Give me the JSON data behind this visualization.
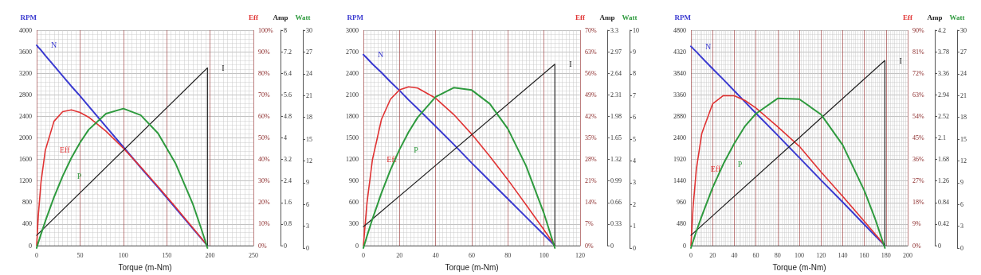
{
  "chart_data": [
    {
      "type": "line",
      "xlabel": "Torque (m-Nm)",
      "ylabel": "RPM",
      "y2label": "Eff",
      "y3label": "Amp",
      "grid": true,
      "x": [
        0,
        2,
        5,
        10,
        20,
        30,
        40,
        50,
        60,
        80,
        100,
        120,
        140,
        160,
        180,
        190,
        197
      ],
      "xlim": [
        0,
        250
      ],
      "xticks": [
        0,
        50,
        100,
        150,
        200,
        250
      ],
      "ylim": [
        0,
        4000
      ],
      "yticks": [
        0,
        400,
        800,
        1200,
        1600,
        2000,
        2400,
        2800,
        3200,
        3600,
        4000
      ],
      "y2lim": [
        0,
        100
      ],
      "y2ticks": [
        {
          "value": 0,
          "label": "0%"
        },
        {
          "value": 10,
          "label": "10%"
        },
        {
          "value": 20,
          "label": "20%"
        },
        {
          "value": 30,
          "label": "30%"
        },
        {
          "value": 40,
          "label": "40%"
        },
        {
          "value": 50,
          "label": "50%"
        },
        {
          "value": 60,
          "label": "60%"
        },
        {
          "value": 70,
          "label": "70%"
        },
        {
          "value": 80,
          "label": "80%"
        },
        {
          "value": 90,
          "label": "90%"
        },
        {
          "value": 100,
          "label": "100%"
        }
      ],
      "y3lim": [
        0,
        8
      ],
      "y3ticks": [
        0,
        0.8,
        1.6,
        2.4,
        3.2,
        4,
        4.8,
        5.6,
        6.4,
        7.2,
        8
      ],
      "series": [
        {
          "name": "N",
          "color": "#3a3ad0",
          "values": [
            3720,
            3680,
            3630,
            3530,
            3340,
            3150,
            2960,
            2780,
            2590,
            2210,
            1830,
            1450,
            1080,
            700,
            320,
            130,
            0
          ]
        },
        {
          "name": "Eff",
          "color": "#e03333",
          "axis": "y2",
          "values": [
            0,
            14.5,
            29.4,
            44.3,
            57.7,
            62.2,
            63.0,
            61.8,
            59.6,
            53.1,
            45.2,
            36.5,
            27.4,
            18.0,
            8.3,
            3.4,
            0
          ]
        },
        {
          "name": "I",
          "color": "#222222",
          "axis": "y3",
          "x": [
            0,
            197,
            197
          ],
          "values": [
            0.38,
            6.6,
            0
          ]
        }
      ]
    },
    {
      "type": "line",
      "ylabel": "Watt",
      "tick_labels": "y",
      "x": [
        0,
        2,
        5,
        10,
        20,
        30,
        40,
        50,
        60,
        80,
        100,
        120,
        140,
        160,
        180,
        190,
        197
      ],
      "xlim": [
        0,
        250
      ],
      "ylim": [
        0,
        30
      ],
      "yticks": [
        0,
        3,
        6,
        9,
        12,
        15,
        18,
        21,
        24,
        27,
        30
      ],
      "series": [
        {
          "name": "P",
          "color": "#2e9a3e",
          "values": [
            0,
            0.8,
            1.9,
            3.7,
            7.0,
            9.9,
            12.4,
            14.5,
            16.3,
            18.5,
            19.2,
            18.3,
            15.8,
            11.7,
            6.1,
            2.6,
            0
          ]
        }
      ]
    },
    {
      "type": "line",
      "xlabel": "Torque (m-Nm)",
      "ylabel": "RPM",
      "y2label": "Eff",
      "y3label": "Amp",
      "grid": true,
      "x": [
        0,
        2,
        5,
        10,
        15,
        20,
        25,
        30,
        40,
        50,
        60,
        70,
        80,
        90,
        100,
        106
      ],
      "xlim": [
        0,
        120
      ],
      "xticks": [
        0,
        20,
        40,
        60,
        80,
        100,
        120
      ],
      "ylim": [
        0,
        3000
      ],
      "yticks": [
        0,
        300,
        600,
        900,
        1200,
        1500,
        1800,
        2100,
        2400,
        2700,
        3000
      ],
      "y2lim": [
        0,
        70
      ],
      "y2ticks": [
        {
          "value": 0,
          "label": "0%"
        },
        {
          "value": 7,
          "label": "7%"
        },
        {
          "value": 14,
          "label": "14%"
        },
        {
          "value": 21,
          "label": "21%"
        },
        {
          "value": 28,
          "label": "28%"
        },
        {
          "value": 35,
          "label": "35%"
        },
        {
          "value": 42,
          "label": "42%"
        },
        {
          "value": 49,
          "label": "49%"
        },
        {
          "value": 56,
          "label": "56%"
        },
        {
          "value": 63,
          "label": "63%"
        },
        {
          "value": 70,
          "label": "70%"
        }
      ],
      "y3lim": [
        0,
        3.3
      ],
      "y3ticks": [
        0,
        0.33,
        0.66,
        0.99,
        1.32,
        1.65,
        1.98,
        2.31,
        2.64,
        2.97,
        3.3
      ],
      "series": [
        {
          "name": "N",
          "color": "#3a3ad0",
          "values": [
            2660,
            2610,
            2530,
            2410,
            2280,
            2160,
            2030,
            1910,
            1660,
            1410,
            1150,
            900,
            650,
            400,
            150,
            0
          ]
        },
        {
          "name": "Eff",
          "color": "#e03333",
          "axis": "y2",
          "values": [
            0,
            13.9,
            27.9,
            41.0,
            47.6,
            50.6,
            51.6,
            51.2,
            47.9,
            42.6,
            36.2,
            29.0,
            21.4,
            13.3,
            5.1,
            0
          ]
        },
        {
          "name": "I",
          "color": "#222222",
          "axis": "y3",
          "x": [
            0,
            106,
            106
          ],
          "values": [
            0.29,
            2.78,
            0
          ]
        }
      ]
    },
    {
      "type": "line",
      "ylabel": "Watt",
      "tick_labels": "y",
      "x": [
        0,
        2,
        5,
        10,
        15,
        20,
        25,
        30,
        40,
        50,
        60,
        70,
        80,
        90,
        100,
        106
      ],
      "xlim": [
        0,
        120
      ],
      "ylim": [
        0,
        10
      ],
      "yticks": [
        0,
        1,
        2,
        3,
        4,
        5,
        6,
        7,
        8,
        9,
        10
      ],
      "series": [
        {
          "name": "P",
          "color": "#2e9a3e",
          "values": [
            0,
            0.55,
            1.33,
            2.52,
            3.59,
            4.52,
            5.32,
            5.99,
            6.94,
            7.36,
            7.25,
            6.62,
            5.47,
            3.78,
            1.58,
            0
          ]
        }
      ]
    },
    {
      "type": "line",
      "xlabel": "Torque (m-Nm)",
      "ylabel": "RPM",
      "y2label": "Eff",
      "y3label": "Amp",
      "grid": true,
      "x": [
        0,
        2,
        5,
        10,
        20,
        30,
        40,
        50,
        60,
        80,
        100,
        120,
        140,
        160,
        170,
        179
      ],
      "xlim": [
        0,
        200
      ],
      "xticks": [
        0,
        20,
        40,
        60,
        80,
        100,
        120,
        140,
        160,
        180,
        200
      ],
      "ylim": [
        0,
        4800
      ],
      "yticks": [
        0,
        480,
        960,
        1440,
        1920,
        2400,
        2880,
        3360,
        3840,
        4320,
        4800
      ],
      "y2lim": [
        0,
        90
      ],
      "y2ticks": [
        {
          "value": 0,
          "label": "0%"
        },
        {
          "value": 9,
          "label": "9%"
        },
        {
          "value": 18,
          "label": "18%"
        },
        {
          "value": 27,
          "label": "27%"
        },
        {
          "value": 36,
          "label": "36%"
        },
        {
          "value": 45,
          "label": "45%"
        },
        {
          "value": 54,
          "label": "54%"
        },
        {
          "value": 63,
          "label": "63%"
        },
        {
          "value": 72,
          "label": "72%"
        },
        {
          "value": 81,
          "label": "81%"
        },
        {
          "value": 90,
          "label": "90%"
        }
      ],
      "y3lim": [
        0,
        4.2
      ],
      "y3ticks": [
        0,
        0.42,
        0.84,
        1.26,
        1.68,
        2.1,
        2.52,
        2.94,
        3.36,
        3.78,
        4.2
      ],
      "series": [
        {
          "name": "N",
          "color": "#3a3ad0",
          "values": [
            4440,
            4390,
            4320,
            4190,
            3940,
            3700,
            3450,
            3200,
            2950,
            2460,
            1960,
            1460,
            970,
            470,
            220,
            0
          ]
        },
        {
          "name": "Eff",
          "color": "#e03333",
          "axis": "y2",
          "values": [
            0,
            16.1,
            31.9,
            46.8,
            59.2,
            62.7,
            62.6,
            60.6,
            57.5,
            49.7,
            41.5,
            30.8,
            20.6,
            10.1,
            4.8,
            0
          ]
        },
        {
          "name": "I",
          "color": "#222222",
          "axis": "y3",
          "x": [
            0,
            179,
            179
          ],
          "values": [
            0.2,
            3.61,
            0
          ]
        }
      ]
    },
    {
      "type": "line",
      "ylabel": "Watt",
      "tick_labels": "y",
      "x": [
        0,
        2,
        5,
        10,
        20,
        30,
        40,
        50,
        60,
        80,
        100,
        120,
        140,
        160,
        170,
        179
      ],
      "xlim": [
        0,
        200
      ],
      "ylim": [
        0,
        30
      ],
      "yticks": [
        0,
        3,
        6,
        9,
        12,
        15,
        18,
        21,
        24,
        27,
        30
      ],
      "series": [
        {
          "name": "P",
          "color": "#2e9a3e",
          "values": [
            0,
            0.9,
            2.3,
            4.4,
            8.3,
            11.6,
            14.4,
            16.8,
            18.5,
            20.6,
            20.5,
            18.4,
            14.2,
            7.9,
            4.0,
            0
          ]
        }
      ]
    }
  ]
}
